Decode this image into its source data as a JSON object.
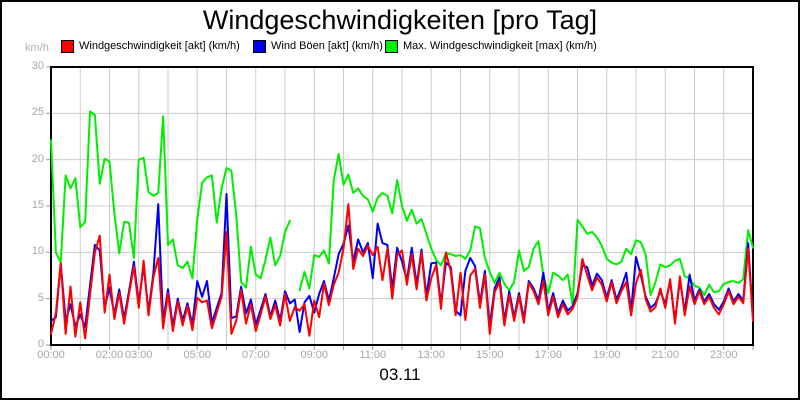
{
  "header": {
    "title": "Windgeschwindigkeiten [pro Tag]"
  },
  "axes": {
    "y_unit": "km/h",
    "x_date_label": "03.11"
  },
  "legend": {
    "items": [
      {
        "label": "Windgeschwindigkeit [akt] (km/h)",
        "color": "#ff0000"
      },
      {
        "label": "Wind Böen [akt] (km/h)",
        "color": "#0000ee"
      },
      {
        "label": "Max. Windgeschwindigkeit [max] (km/h)",
        "color": "#00ee00"
      }
    ]
  },
  "chart_data": {
    "type": "line",
    "title": "Windgeschwindigkeiten [pro Tag]",
    "xlabel": "03.11",
    "ylabel": "km/h",
    "ylim": [
      0,
      30
    ],
    "xlim_hours": [
      0,
      24
    ],
    "grid": true,
    "legend_position": "top",
    "y_ticks": [
      0,
      5,
      10,
      15,
      20,
      25,
      30
    ],
    "x_ticks": [
      {
        "hour": 0,
        "label": "00:00"
      },
      {
        "hour": 2,
        "label": "02:00"
      },
      {
        "hour": 3,
        "label": "03:00"
      },
      {
        "hour": 5,
        "label": "05:00"
      },
      {
        "hour": 7,
        "label": "07:00"
      },
      {
        "hour": 9,
        "label": "09:00"
      },
      {
        "hour": 11,
        "label": "11:00"
      },
      {
        "hour": 13,
        "label": "13:00"
      },
      {
        "hour": 15,
        "label": "15:00"
      },
      {
        "hour": 17,
        "label": "17:00"
      },
      {
        "hour": 19,
        "label": "19:00"
      },
      {
        "hour": 21,
        "label": "21:00"
      },
      {
        "hour": 23,
        "label": "23:00"
      }
    ],
    "x_start_hour": 0,
    "x_step_minutes": 10,
    "series": [
      {
        "name": "Max. Windgeschwindigkeit [max] (km/h)",
        "color": "#00ee00",
        "values": [
          22.1,
          10.0,
          8.9,
          18.3,
          16.9,
          18.0,
          12.7,
          13.3,
          25.2,
          24.8,
          17.4,
          20.1,
          19.8,
          14.2,
          9.9,
          13.3,
          13.2,
          9.4,
          20.0,
          20.2,
          16.5,
          16.1,
          16.4,
          24.7,
          10.8,
          11.4,
          8.6,
          8.3,
          9.0,
          7.2,
          13.5,
          17.5,
          18.1,
          18.3,
          13.2,
          16.9,
          19.1,
          18.8,
          14.0,
          6.8,
          6.2,
          10.6,
          7.6,
          7.2,
          9.2,
          11.6,
          8.6,
          9.6,
          12.2,
          13.4,
          null,
          5.9,
          7.9,
          6.1,
          9.7,
          9.5,
          10.2,
          8.8,
          17.8,
          20.6,
          17.3,
          18.4,
          16.4,
          16.9,
          16.1,
          15.7,
          14.4,
          15.9,
          16.4,
          16.1,
          14.2,
          17.8,
          15.0,
          13.4,
          14.6,
          13.1,
          13.6,
          12.0,
          10.4,
          9.2,
          8.6,
          9.9,
          9.8,
          9.6,
          9.7,
          9.3,
          10.2,
          12.8,
          12.6,
          9.4,
          7.9,
          6.7,
          7.8,
          6.6,
          5.9,
          6.8,
          10.2,
          8.0,
          8.4,
          10.4,
          11.2,
          7.5,
          5.6,
          7.8,
          7.5,
          7.0,
          7.6,
          4.4,
          13.5,
          12.8,
          12.0,
          12.2,
          11.6,
          10.7,
          9.3,
          8.9,
          8.7,
          9.0,
          10.4,
          9.8,
          11.3,
          11.1,
          9.7,
          5.4,
          6.8,
          8.7,
          8.4,
          8.6,
          9.1,
          9.3,
          7.4,
          7.2,
          6.4,
          6.2,
          5.4,
          6.5,
          5.7,
          5.8,
          6.6,
          6.8,
          6.9,
          6.7,
          7.1,
          12.4,
          10.5
        ]
      },
      {
        "name": "Wind Böen [akt] (km/h)",
        "color": "#0000ee",
        "values": [
          2.6,
          3.0,
          8.8,
          2.6,
          4.4,
          2.0,
          3.3,
          1.9,
          6.4,
          10.8,
          10.2,
          4.0,
          6.2,
          3.3,
          6.0,
          2.8,
          5.8,
          9.0,
          4.5,
          8.6,
          3.6,
          7.7,
          15.2,
          2.5,
          6.0,
          2.0,
          5.0,
          2.6,
          4.5,
          2.2,
          6.9,
          5.2,
          6.9,
          2.4,
          4.0,
          5.6,
          16.3,
          2.9,
          3.1,
          6.3,
          3.4,
          4.9,
          2.2,
          3.8,
          5.5,
          3.1,
          4.8,
          2.6,
          5.8,
          4.5,
          4.9,
          1.4,
          4.6,
          5.3,
          3.5,
          5.5,
          6.9,
          4.8,
          7.2,
          9.8,
          10.9,
          12.9,
          9.0,
          11.4,
          10.0,
          11.0,
          7.2,
          13.1,
          11.0,
          10.8,
          6.0,
          10.5,
          9.0,
          7.0,
          10.5,
          6.5,
          10.3,
          5.3,
          8.8,
          8.9,
          4.4,
          8.9,
          8.4,
          3.7,
          3.2,
          8.0,
          9.4,
          8.5,
          4.5,
          8.0,
          2.0,
          6.1,
          7.3,
          2.6,
          5.8,
          3.0,
          5.6,
          2.8,
          6.9,
          6.1,
          4.8,
          7.8,
          3.6,
          5.6,
          3.4,
          4.8,
          3.7,
          4.2,
          5.6,
          8.6,
          8.4,
          6.4,
          7.7,
          7.0,
          5.1,
          7.0,
          4.9,
          6.2,
          7.8,
          3.7,
          9.5,
          7.5,
          5.2,
          4.0,
          4.5,
          5.8,
          4.4,
          6.9,
          2.6,
          7.0,
          3.6,
          7.6,
          4.8,
          6.0,
          4.7,
          5.5,
          4.4,
          3.8,
          4.7,
          6.1,
          4.7,
          5.5,
          4.8,
          11.0,
          2.8
        ]
      },
      {
        "name": "Windgeschwindigkeit [akt] (km/h)",
        "color": "#ff0000",
        "values": [
          1.2,
          3.4,
          8.8,
          1.2,
          6.3,
          0.9,
          4.6,
          0.7,
          5.4,
          10.0,
          11.8,
          3.5,
          7.6,
          2.8,
          5.6,
          2.3,
          5.5,
          8.5,
          4.0,
          9.1,
          3.2,
          7.3,
          9.4,
          1.8,
          5.6,
          1.5,
          4.7,
          2.1,
          4.2,
          1.6,
          5.1,
          4.6,
          4.8,
          1.8,
          3.5,
          5.2,
          12.2,
          1.2,
          2.6,
          5.9,
          2.3,
          4.4,
          1.5,
          3.3,
          5.2,
          2.8,
          4.3,
          2.1,
          5.5,
          2.6,
          4.1,
          3.7,
          4.4,
          1.0,
          4.8,
          3.0,
          6.6,
          4.3,
          6.5,
          7.8,
          10.4,
          15.2,
          8.2,
          10.4,
          9.6,
          10.7,
          9.7,
          10.6,
          7.0,
          10.4,
          5.0,
          9.7,
          10.2,
          6.5,
          9.8,
          6.0,
          10.0,
          4.8,
          7.2,
          8.6,
          3.9,
          10.0,
          8.0,
          3.2,
          7.8,
          2.7,
          7.5,
          8.2,
          4.0,
          7.6,
          1.2,
          5.7,
          6.8,
          2.1,
          5.4,
          2.6,
          5.3,
          2.4,
          6.7,
          5.8,
          4.4,
          6.9,
          3.2,
          5.2,
          3.0,
          4.4,
          3.3,
          3.9,
          5.2,
          9.3,
          7.5,
          5.9,
          7.3,
          6.5,
          4.7,
          6.8,
          4.5,
          5.8,
          6.8,
          3.2,
          6.7,
          8.1,
          4.9,
          3.6,
          4.1,
          6.1,
          4.0,
          7.1,
          2.3,
          7.4,
          3.2,
          6.3,
          4.4,
          5.8,
          4.4,
          5.2,
          4.0,
          3.3,
          4.4,
          5.8,
          4.4,
          5.2,
          4.5,
          10.4,
          2.6
        ]
      }
    ],
    "style": {
      "grid_color": "#cccccc",
      "axis_color": "#000000",
      "tick_color": "#999999",
      "label_color": "#a6a6a6"
    }
  }
}
